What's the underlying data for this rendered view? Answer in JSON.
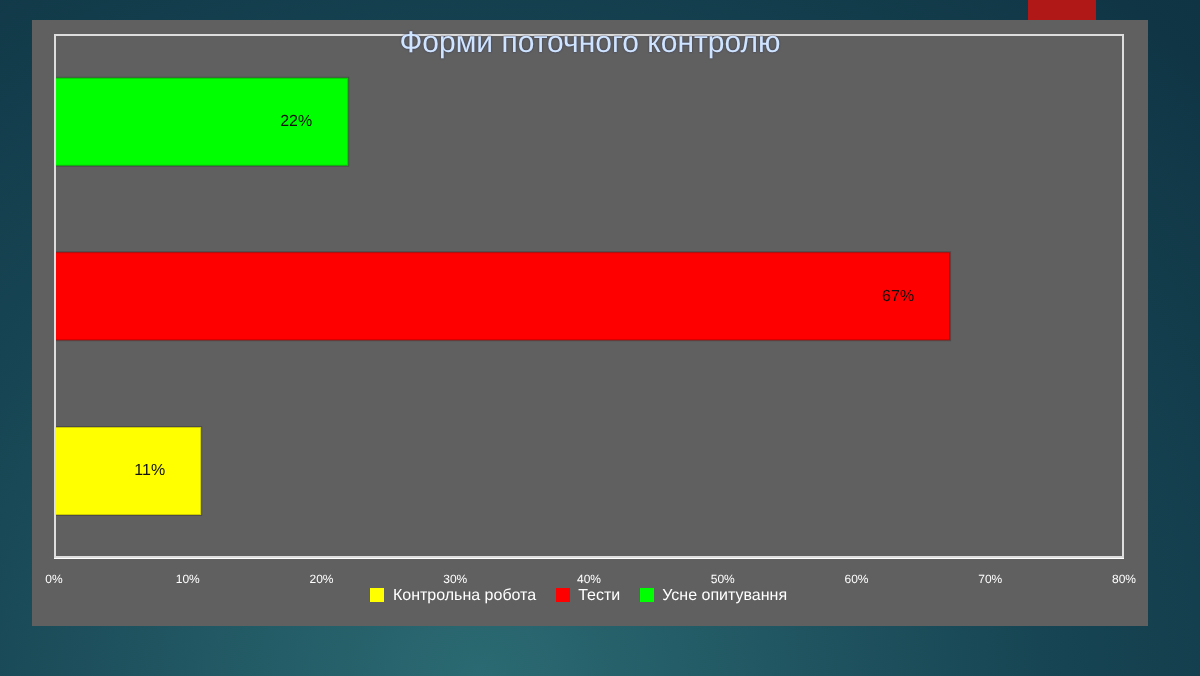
{
  "chart_data": {
    "type": "bar",
    "orientation": "horizontal",
    "stacked": true,
    "title": "Форми поточного контролю",
    "categories": [
      null,
      null,
      null
    ],
    "series": [
      {
        "name": "Контрольна робота",
        "color": "#ffff00",
        "values": [
          null,
          null,
          11
        ],
        "value_labels": [
          null,
          null,
          "11%"
        ]
      },
      {
        "name": "Тести",
        "color": "#ff0000",
        "values": [
          null,
          67,
          null
        ],
        "value_labels": [
          null,
          "67%",
          null
        ]
      },
      {
        "name": "Усне опитування",
        "color": "#00ff00",
        "values": [
          22,
          null,
          null
        ],
        "value_labels": [
          "22%",
          null,
          null
        ]
      }
    ],
    "xlim": [
      0,
      80
    ],
    "xticks": [
      {
        "value": 0,
        "label": "0%"
      },
      {
        "value": 10,
        "label": "10%"
      },
      {
        "value": 20,
        "label": "20%"
      },
      {
        "value": 30,
        "label": "30%"
      },
      {
        "value": 40,
        "label": "40%"
      },
      {
        "value": 50,
        "label": "50%"
      },
      {
        "value": 60,
        "label": "60%"
      },
      {
        "value": 70,
        "label": "70%"
      },
      {
        "value": 80,
        "label": "80%"
      }
    ],
    "legend": "bottom"
  }
}
